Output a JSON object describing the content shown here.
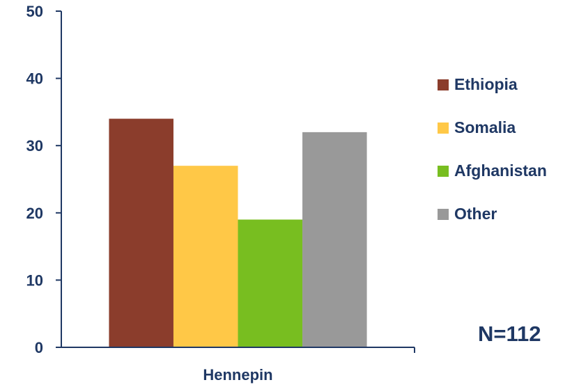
{
  "chart_data": {
    "type": "bar",
    "categories": [
      "Hennepin"
    ],
    "series": [
      {
        "name": "Ethiopia",
        "values": [
          34
        ],
        "color": "#8b3d2c"
      },
      {
        "name": "Somalia",
        "values": [
          27
        ],
        "color": "#ffc847"
      },
      {
        "name": "Afghanistan",
        "values": [
          19
        ],
        "color": "#78be20"
      },
      {
        "name": "Other",
        "values": [
          32
        ],
        "color": "#999999"
      }
    ],
    "ylim": [
      0,
      50
    ],
    "yticks": [
      0,
      10,
      20,
      30,
      40,
      50
    ],
    "legend_position": "right",
    "grid": false,
    "annotation": "N=112"
  }
}
